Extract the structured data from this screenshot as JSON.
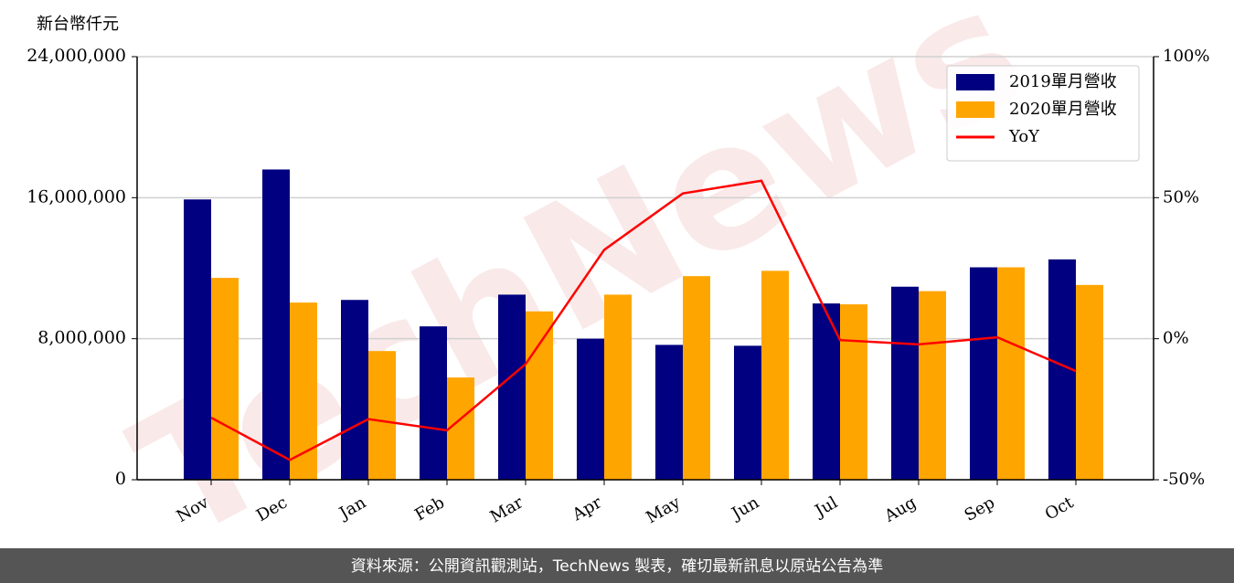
{
  "chart_data": {
    "type": "bar",
    "y_label": "新台幣仟元",
    "watermark": "TechNews",
    "categories": [
      "Nov",
      "Dec",
      "Jan",
      "Feb",
      "Mar",
      "Apr",
      "May",
      "Jun",
      "Jul",
      "Aug",
      "Sep",
      "Oct"
    ],
    "series": [
      {
        "name": "2019單月營收",
        "color": "#000080",
        "values": [
          15900000,
          17600000,
          10200000,
          8700000,
          10500000,
          8000000,
          7650000,
          7600000,
          10000000,
          10950000,
          12050000,
          12500000
        ]
      },
      {
        "name": "2020單月營收",
        "color": "#ffa500",
        "values": [
          11450000,
          10050000,
          7300000,
          5800000,
          9550000,
          10500000,
          11550000,
          11850000,
          9950000,
          10700000,
          12050000,
          11050000
        ]
      },
      {
        "name": "YoY",
        "type": "line",
        "axis": "y2",
        "color": "#ff0000",
        "values": [
          -28,
          -43,
          -28.5,
          -32.5,
          -9,
          31.5,
          51.5,
          56,
          -0.5,
          -2,
          0.5,
          -11.5
        ]
      }
    ],
    "ylim": [
      0,
      24000000
    ],
    "yticks": [
      0,
      {
        "value": 8000000,
        "label": "8,000,000"
      },
      {
        "value": 16000000,
        "label": "16,000,000"
      },
      {
        "value": 24000000,
        "label": "24,000,000"
      }
    ],
    "y2lim": [
      -50,
      100
    ],
    "y2ticks": [
      {
        "value": -50,
        "label": "-50%"
      },
      {
        "value": 0,
        "label": "0%"
      },
      {
        "value": 50,
        "label": "50%"
      },
      {
        "value": 100,
        "label": "100%"
      }
    ],
    "grid": true,
    "legend": "upper-right"
  },
  "footer": {
    "text": "資料來源：公開資訊觀測站，TechNews 製表，確切最新訊息以原站公告為準"
  }
}
